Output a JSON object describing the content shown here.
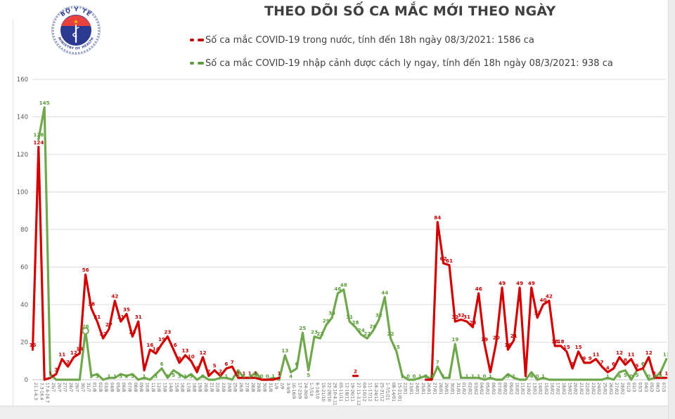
{
  "header": {
    "title": "THEO DÕI SỐ CA MẮC MỚI THEO NGÀY"
  },
  "logo": {
    "top_text": "BỘ Y TẾ",
    "bottom_text": "MINISTRY OF HEALTH"
  },
  "legend": {
    "items": [
      {
        "color": "#C00000",
        "text": "Số ca mắc COVID-19 trong nước, tính đến 18h ngày 08/3/2021: 1586 ca"
      },
      {
        "color": "#5E9C3C",
        "text": "Số ca mắc COVID-19 nhập cảnh được cách ly ngay, tính đến 18h ngày 08/3/2021: 938 ca"
      }
    ]
  },
  "colors": {
    "red_line": "#D20000",
    "red_label": "#C00000",
    "green_line": "#70A84D",
    "green_label": "#5E9C3C",
    "grid": "#dcdcdc",
    "axis_text": "#595959"
  },
  "chart_data": {
    "type": "line",
    "title": "THEO DÕI SỐ CA MẮC MỚI THEO NGÀY",
    "xlabel": "",
    "ylabel": "",
    "ylim": [
      0,
      160
    ],
    "y_ticks": [
      0,
      20,
      40,
      60,
      80,
      100,
      120,
      140,
      160
    ],
    "grid": true,
    "legend_position": "top",
    "x_label_rotation": 90,
    "categories": [
      "21.1-6.3",
      "7.3-16.4",
      "17.4-24.7",
      "25/7",
      "26/7",
      "27/7",
      "28/7",
      "29/7",
      "30/7",
      "31/7",
      "01/8",
      "02/8",
      "03/8",
      "04/8",
      "05/8",
      "06/8",
      "07/8",
      "08/8",
      "09/8",
      "10/8",
      "11/8",
      "12/8",
      "13/8",
      "14/8",
      "15/8",
      "16/8",
      "17/8",
      "18/8",
      "19/8",
      "20/8",
      "21/8",
      "22/8",
      "23/8",
      "24/8",
      "25/8",
      "26/8",
      "27/8",
      "28/8",
      "29/8",
      "30/8",
      "31/8",
      "1/9",
      "2/9",
      "3-9/9",
      "10-16/9",
      "17-23/9",
      "24-30/9",
      "1-7/10",
      "8-14/10",
      "15-21/10",
      "22-28/10",
      "29.10-4.11",
      "05-11/11",
      "12-18/11",
      "19-26/11",
      "27.11-3.12",
      "04-10/12",
      "11-17/12",
      "18-24/12",
      "25-31/12",
      "1-7/1/21",
      "08-14/01",
      "15-21/01",
      "22/01",
      "23/01",
      "24/01",
      "25/01",
      "26/01",
      "27/01",
      "28/01",
      "29/01",
      "30/01",
      "31/01",
      "01/02",
      "02/02",
      "03/02",
      "04/02",
      "05/02",
      "06/02",
      "07/02",
      "08/02",
      "09/02",
      "10/02",
      "11/02",
      "12/02",
      "13/02",
      "14/02",
      "15/02",
      "16/02",
      "17/02",
      "18/02",
      "19/02",
      "20/02",
      "21/02",
      "22/02",
      "23/02",
      "24/02",
      "25/02",
      "26/02",
      "27/02",
      "28/02",
      "01/3",
      "02/3",
      "03/3",
      "04/3",
      "05/3",
      "06/3",
      "07/3",
      "08/3"
    ],
    "series": [
      {
        "name": "Số ca mắc COVID-19 trong nước",
        "color": "#D20000",
        "label_color": "#C00000",
        "values": [
          16,
          124,
          0,
          1,
          3,
          11,
          7,
          12,
          14,
          56,
          38,
          31,
          22,
          27,
          42,
          31,
          35,
          23,
          31,
          5,
          16,
          14,
          19,
          23,
          16,
          9,
          13,
          10,
          4,
          12,
          2,
          5,
          2,
          6,
          7,
          1,
          1,
          1,
          1,
          0,
          0,
          0,
          1,
          null,
          null,
          null,
          null,
          null,
          null,
          null,
          null,
          null,
          null,
          null,
          null,
          2,
          null,
          null,
          null,
          null,
          null,
          null,
          null,
          null,
          null,
          null,
          null,
          0,
          0,
          84,
          62,
          61,
          31,
          32,
          31,
          28,
          46,
          19,
          4,
          20,
          49,
          16,
          21,
          49,
          2,
          49,
          33,
          40,
          42,
          18,
          18,
          15,
          6,
          15,
          9,
          9,
          11,
          7,
          4,
          6,
          12,
          8,
          11,
          5,
          6,
          12,
          1,
          1,
          1
        ]
      },
      {
        "name": "Số ca mắc COVID-19 nhập cảnh được cách ly ngay",
        "color": "#70A84D",
        "label_color": "#5E9C3C",
        "values": [
          null,
          128,
          145,
          3,
          0,
          0,
          0,
          0,
          0,
          26,
          2,
          3,
          0,
          1,
          1,
          3,
          2,
          3,
          0,
          1,
          0,
          3,
          6,
          1,
          5,
          3,
          1,
          3,
          0,
          2,
          0,
          0,
          1,
          1,
          0,
          5,
          1,
          1,
          4,
          0,
          0,
          1,
          0,
          13,
          4,
          6,
          25,
          5,
          23,
          22,
          29,
          33,
          46,
          48,
          31,
          28,
          24,
          22,
          26,
          32,
          44,
          22,
          15,
          2,
          0,
          0,
          1,
          2,
          0,
          7,
          1,
          1,
          19,
          1,
          1,
          1,
          1,
          0,
          1,
          0,
          0,
          3,
          1,
          0,
          0,
          4,
          0,
          1,
          0,
          0,
          0,
          0,
          0,
          0,
          0,
          0,
          0,
          0,
          1,
          0,
          4,
          5,
          0,
          5,
          6,
          0,
          1,
          4,
          11
        ],
        "labels": [
          null,
          "128",
          "145",
          "3",
          null,
          null,
          null,
          null,
          null,
          "26",
          "2",
          "3",
          null,
          "1",
          "1",
          "3",
          "2",
          "3",
          null,
          "1",
          null,
          "3",
          "6",
          "1",
          "5",
          "3",
          "1",
          "3",
          null,
          "2",
          null,
          null,
          "1",
          "1",
          null,
          "5",
          "1",
          "1",
          "4",
          "0",
          "0",
          "1",
          null,
          "13",
          "4",
          "6",
          "25",
          "5",
          "23",
          "22",
          "29",
          "33",
          "46",
          "48",
          "31",
          "28",
          "24",
          "22",
          "26",
          "32",
          "44",
          "22",
          "15",
          "2",
          "0",
          "0",
          "1",
          "2",
          "0",
          "7",
          "1",
          "1",
          "19",
          "1",
          "1",
          "1",
          "1",
          "0",
          "1",
          null,
          null,
          "3",
          "1",
          null,
          null,
          "4",
          "0",
          "1",
          null,
          null,
          null,
          null,
          null,
          null,
          null,
          null,
          null,
          null,
          "1",
          null,
          "4",
          "5",
          "0",
          "5",
          "6",
          "0",
          "1",
          "4",
          "11"
        ],
        "marker_index": 9
      }
    ]
  }
}
